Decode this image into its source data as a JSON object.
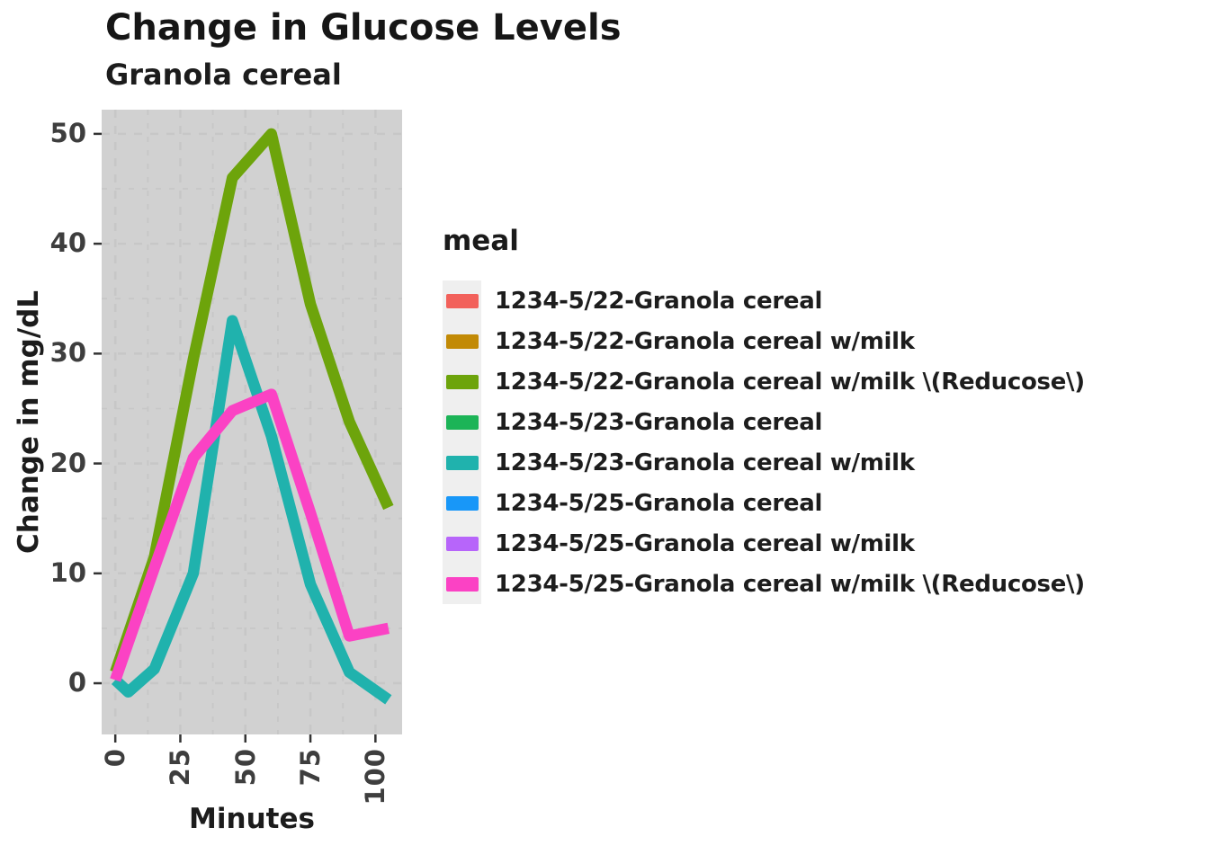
{
  "title": "Change in Glucose Levels",
  "subtitle": "Granola cereal",
  "chart_data": {
    "type": "line",
    "title": "Change in Glucose Levels",
    "subtitle": "Granola cereal",
    "xlabel": "Minutes",
    "ylabel": "Change in mg/dL",
    "x": [
      0,
      5,
      15,
      30,
      45,
      60,
      75,
      90,
      105
    ],
    "series": [
      {
        "name": "1234-5/22-Granola cereal w/milk \\(Reducose\\)",
        "color": "#6DA40B",
        "values": [
          1,
          4.5,
          11.5,
          29.5,
          46,
          50,
          34.5,
          23.8,
          16
        ]
      },
      {
        "name": "1234-5/23-Granola cereal w/milk",
        "color": "#20B2AD",
        "values": [
          0.3,
          -0.8,
          1.3,
          10,
          33,
          22.5,
          9,
          1,
          -1.5
        ]
      },
      {
        "name": "1234-5/25-Granola cereal w/milk \\(Reducose\\)",
        "color": "#FB42C4",
        "values": [
          0.3,
          3.7,
          10.5,
          20.5,
          24.8,
          26.3,
          15.5,
          4.3,
          5
        ]
      }
    ],
    "xticks": [
      0,
      25,
      50,
      75,
      100
    ],
    "yticks": [
      0,
      10,
      20,
      30,
      40,
      50
    ],
    "x_minor": [
      12.5,
      37.5,
      62.5,
      87.5
    ],
    "y_minor": [
      5,
      15,
      25,
      35,
      45
    ],
    "xlim": [
      -5.25,
      110.25
    ],
    "ylim": [
      -4.66,
      52.2
    ],
    "grid": "dashed",
    "legend_position": "right",
    "panel_background": "#D1D1D1",
    "grid_color": "#C7C7C7",
    "line_width": 12.5
  },
  "legend": {
    "title": "meal",
    "items": [
      {
        "label": "1234-5/22-Granola cereal",
        "color": "#F2615B"
      },
      {
        "label": "1234-5/22-Granola cereal w/milk",
        "color": "#C28A06"
      },
      {
        "label": "1234-5/22-Granola cereal w/milk \\(Reducose\\)",
        "color": "#6DA40B"
      },
      {
        "label": "1234-5/23-Granola cereal",
        "color": "#1CB457"
      },
      {
        "label": "1234-5/23-Granola cereal w/milk",
        "color": "#20B2AD"
      },
      {
        "label": "1234-5/25-Granola cereal",
        "color": "#1897F8"
      },
      {
        "label": "1234-5/25-Granola cereal w/milk",
        "color": "#B765FA"
      },
      {
        "label": "1234-5/25-Granola cereal w/milk \\(Reducose\\)",
        "color": "#FB42C4"
      }
    ]
  }
}
